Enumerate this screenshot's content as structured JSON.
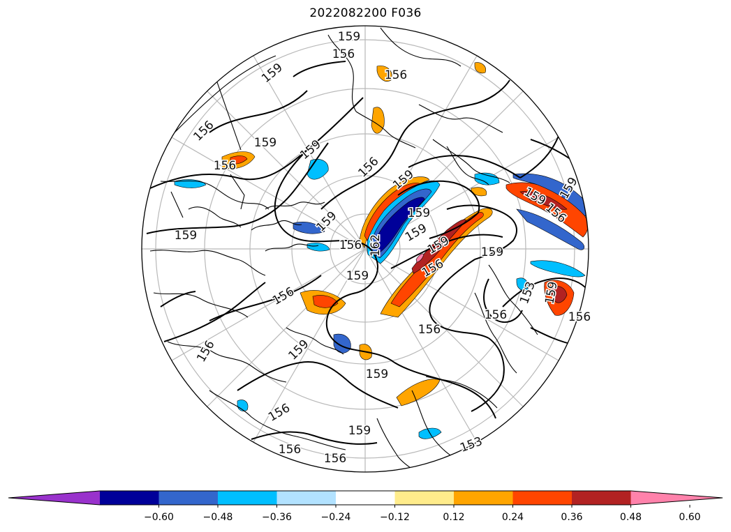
{
  "title": "2022082200 F036",
  "map": {
    "projection": "north-polar-stereographic",
    "contour_labels": [
      "159",
      "156",
      "159",
      "156",
      "156",
      "159",
      "159",
      "156",
      "156",
      "159",
      "159",
      "156",
      "159",
      "159",
      "162",
      "159",
      "159",
      "156",
      "159",
      "156",
      "159",
      "156",
      "159",
      "156",
      "159",
      "159",
      "156",
      "156",
      "153",
      "159",
      "156",
      "156",
      "159",
      "156",
      "153",
      "156",
      "159"
    ],
    "colors": {
      "coast": "#000000",
      "graticule": "#b8b8b8",
      "contour": "#000000"
    }
  },
  "colorbar": {
    "ticks": [
      "−0.60",
      "−0.48",
      "−0.36",
      "−0.24",
      "−0.12",
      "0.12",
      "0.24",
      "0.36",
      "0.48",
      "0.60"
    ],
    "colors": [
      "#9932cc",
      "#000099",
      "#3366cc",
      "#00bfff",
      "#b2e2ff",
      "#ffffff",
      "#ffec8b",
      "#ffa500",
      "#ff4500",
      "#b22222",
      "#ff82ab"
    ],
    "extend": "both"
  }
}
